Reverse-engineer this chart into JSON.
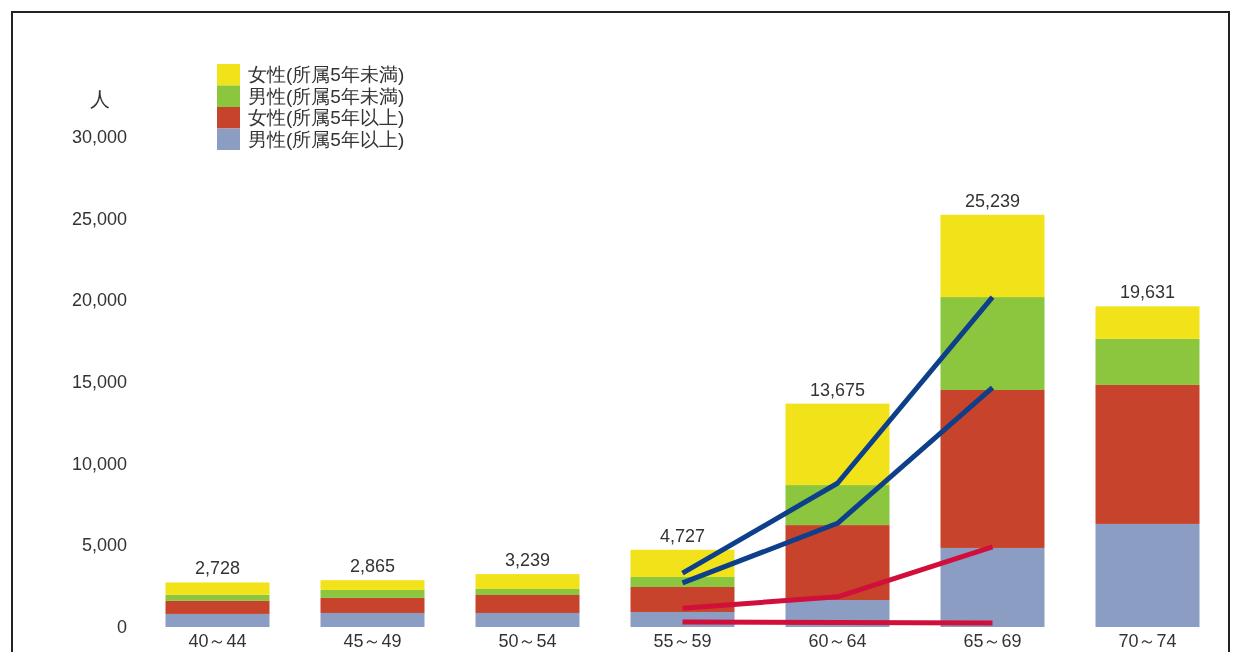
{
  "chart_data": {
    "type": "bar",
    "stacked": true,
    "ylabel": "人",
    "legend": "top left",
    "categories": [
      "40～44",
      "45～49",
      "50～54",
      "55～59",
      "60～64",
      "65～69",
      "70～74"
    ],
    "ylim": [
      0,
      30000
    ],
    "yticks": [
      {
        "value": 0,
        "label": "0"
      },
      {
        "value": 5000,
        "label": "5,000"
      },
      {
        "value": 10000,
        "label": "10,000"
      },
      {
        "value": 15000,
        "label": "15,000"
      },
      {
        "value": 20000,
        "label": "20,000"
      },
      {
        "value": 25000,
        "label": "25,000"
      },
      {
        "value": 30000,
        "label": "30,000"
      }
    ],
    "totals": [
      "2,728",
      "2,865",
      "3,239",
      "4,727",
      "13,675",
      "25,239",
      "19,631"
    ],
    "series": [
      {
        "name": "男性(所属5年以上)",
        "color": "#8c9dc4",
        "values": [
          800,
          860,
          860,
          920,
          1650,
          4840,
          6310
        ]
      },
      {
        "name": "女性(所属5年以上)",
        "color": "#c8432b",
        "values": [
          800,
          920,
          1100,
          1530,
          4590,
          9670,
          8510
        ]
      },
      {
        "name": "男性(所属5年未満)",
        "color": "#8cc63f",
        "values": [
          370,
          490,
          370,
          610,
          2450,
          5690,
          2820
        ]
      },
      {
        "name": "女性(所属5年未満)",
        "color": "#f2e21a",
        "values": [
          758,
          595,
          909,
          1667,
          4985,
          5039,
          1991
        ]
      },
      {
        "type": "line",
        "color": "#0d3f8a",
        "values": [
          null,
          null,
          null,
          3300,
          8800,
          20200,
          null
        ]
      },
      {
        "type": "line",
        "color": "#0d3f8a",
        "values": [
          null,
          null,
          null,
          2700,
          6350,
          14650,
          null
        ]
      },
      {
        "type": "line",
        "color": "#d0103a",
        "values": [
          null,
          null,
          null,
          1150,
          1850,
          4900,
          null
        ]
      },
      {
        "type": "line",
        "color": "#d0103a",
        "values": [
          null,
          null,
          null,
          300,
          280,
          250,
          null
        ]
      }
    ]
  }
}
